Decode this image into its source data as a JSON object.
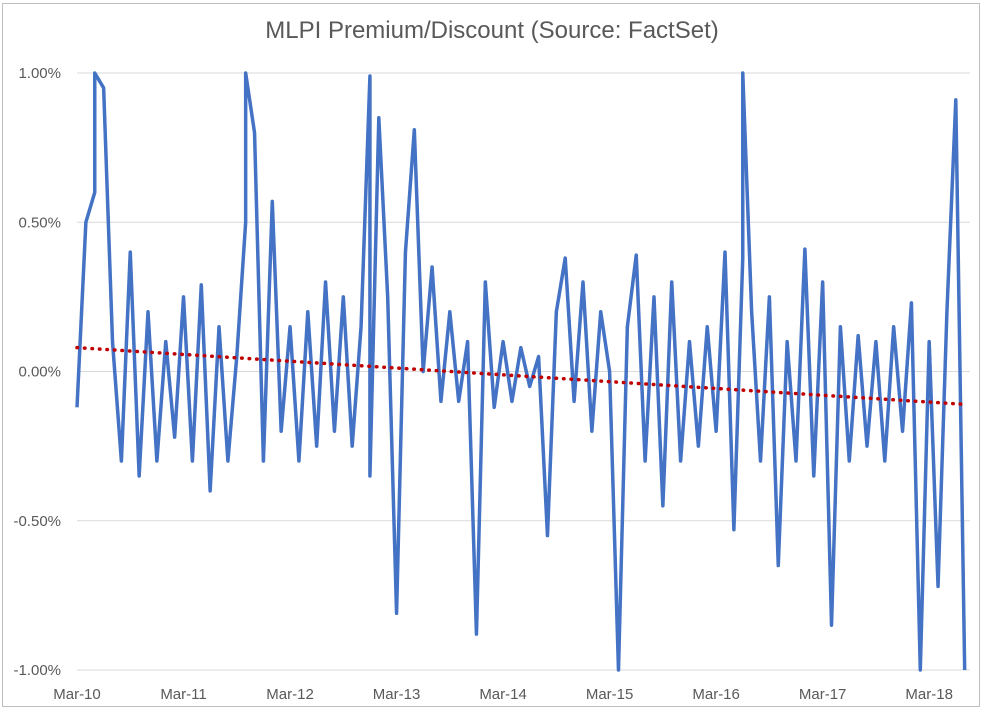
{
  "chart_data": {
    "type": "line",
    "title": "MLPI Premium/Discount (Source: FactSet)",
    "xlabel": "",
    "ylabel": "",
    "x_range": [
      "2010-03",
      "2018-07"
    ],
    "x_ticks": [
      "Mar-10",
      "Mar-11",
      "Mar-12",
      "Mar-13",
      "Mar-14",
      "Mar-15",
      "Mar-16",
      "Mar-17",
      "Mar-18"
    ],
    "ylim": [
      -1.0,
      1.0
    ],
    "y_ticks": [
      "-1.00%",
      "-0.50%",
      "0.00%",
      "0.50%",
      "1.00%"
    ],
    "y_tick_values": [
      -1.0,
      -0.5,
      0.0,
      0.5,
      1.0
    ],
    "grid": "horizontal",
    "legend": "none",
    "series": [
      {
        "color": "#4472c4",
        "style": "solid",
        "points": [
          [
            "2010-03",
            -0.12
          ],
          [
            "2010-04",
            0.5
          ],
          [
            "2010-05",
            0.6
          ],
          [
            "2010-05",
            1.0
          ],
          [
            "2010-06",
            0.95
          ],
          [
            "2010-07",
            0.1
          ],
          [
            "2010-08",
            -0.3
          ],
          [
            "2010-09",
            0.4
          ],
          [
            "2010-10",
            -0.35
          ],
          [
            "2010-11",
            0.2
          ],
          [
            "2010-12",
            -0.3
          ],
          [
            "2011-01",
            0.1
          ],
          [
            "2011-02",
            -0.22
          ],
          [
            "2011-03",
            0.25
          ],
          [
            "2011-04",
            -0.3
          ],
          [
            "2011-05",
            0.29
          ],
          [
            "2011-06",
            -0.4
          ],
          [
            "2011-07",
            0.15
          ],
          [
            "2011-08",
            -0.3
          ],
          [
            "2011-09",
            0.05
          ],
          [
            "2011-10",
            0.5
          ],
          [
            "2011-10",
            1.0
          ],
          [
            "2011-11",
            0.8
          ],
          [
            "2011-12",
            -0.3
          ],
          [
            "2012-01",
            0.57
          ],
          [
            "2012-02",
            -0.2
          ],
          [
            "2012-03",
            0.15
          ],
          [
            "2012-04",
            -0.3
          ],
          [
            "2012-05",
            0.2
          ],
          [
            "2012-06",
            -0.25
          ],
          [
            "2012-07",
            0.3
          ],
          [
            "2012-08",
            -0.2
          ],
          [
            "2012-09",
            0.25
          ],
          [
            "2012-10",
            -0.25
          ],
          [
            "2012-11",
            0.15
          ],
          [
            "2012-12",
            0.99
          ],
          [
            "2012-12",
            -0.35
          ],
          [
            "2013-01",
            0.85
          ],
          [
            "2013-02",
            0.25
          ],
          [
            "2013-03",
            -0.81
          ],
          [
            "2013-04",
            0.4
          ],
          [
            "2013-05",
            0.81
          ],
          [
            "2013-06",
            0.0
          ],
          [
            "2013-07",
            0.35
          ],
          [
            "2013-08",
            -0.1
          ],
          [
            "2013-09",
            0.2
          ],
          [
            "2013-10",
            -0.1
          ],
          [
            "2013-11",
            0.1
          ],
          [
            "2013-12",
            -0.88
          ],
          [
            "2014-01",
            0.3
          ],
          [
            "2014-02",
            -0.12
          ],
          [
            "2014-03",
            0.1
          ],
          [
            "2014-04",
            -0.1
          ],
          [
            "2014-05",
            0.08
          ],
          [
            "2014-06",
            -0.05
          ],
          [
            "2014-07",
            0.05
          ],
          [
            "2014-08",
            -0.55
          ],
          [
            "2014-09",
            0.2
          ],
          [
            "2014-10",
            0.38
          ],
          [
            "2014-11",
            -0.1
          ],
          [
            "2014-12",
            0.3
          ],
          [
            "2015-01",
            -0.2
          ],
          [
            "2015-02",
            0.2
          ],
          [
            "2015-03",
            0.0
          ],
          [
            "2015-04",
            -1.0
          ],
          [
            "2015-05",
            0.15
          ],
          [
            "2015-06",
            0.39
          ],
          [
            "2015-07",
            -0.3
          ],
          [
            "2015-08",
            0.25
          ],
          [
            "2015-09",
            -0.45
          ],
          [
            "2015-10",
            0.3
          ],
          [
            "2015-11",
            -0.3
          ],
          [
            "2015-12",
            0.1
          ],
          [
            "2016-01",
            -0.25
          ],
          [
            "2016-02",
            0.15
          ],
          [
            "2016-03",
            -0.2
          ],
          [
            "2016-04",
            0.4
          ],
          [
            "2016-05",
            -0.53
          ],
          [
            "2016-06",
            0.38
          ],
          [
            "2016-06",
            1.0
          ],
          [
            "2016-07",
            0.2
          ],
          [
            "2016-08",
            -0.3
          ],
          [
            "2016-09",
            0.25
          ],
          [
            "2016-10",
            -0.65
          ],
          [
            "2016-11",
            0.1
          ],
          [
            "2016-12",
            -0.3
          ],
          [
            "2017-01",
            0.41
          ],
          [
            "2017-02",
            -0.35
          ],
          [
            "2017-03",
            0.3
          ],
          [
            "2017-04",
            -0.85
          ],
          [
            "2017-05",
            0.15
          ],
          [
            "2017-06",
            -0.3
          ],
          [
            "2017-07",
            0.12
          ],
          [
            "2017-08",
            -0.25
          ],
          [
            "2017-09",
            0.1
          ],
          [
            "2017-10",
            -0.3
          ],
          [
            "2017-11",
            0.15
          ],
          [
            "2017-12",
            -0.2
          ],
          [
            "2018-01",
            0.23
          ],
          [
            "2018-02",
            -1.0
          ],
          [
            "2018-03",
            0.1
          ],
          [
            "2018-04",
            -0.72
          ],
          [
            "2018-05",
            0.2
          ],
          [
            "2018-06",
            0.91
          ],
          [
            "2018-07",
            -1.0
          ]
        ]
      },
      {
        "color": "#c00000",
        "style": "dotted",
        "type": "trendline",
        "points": [
          [
            "2010-03",
            0.08
          ],
          [
            "2018-07",
            -0.11
          ]
        ]
      }
    ]
  }
}
